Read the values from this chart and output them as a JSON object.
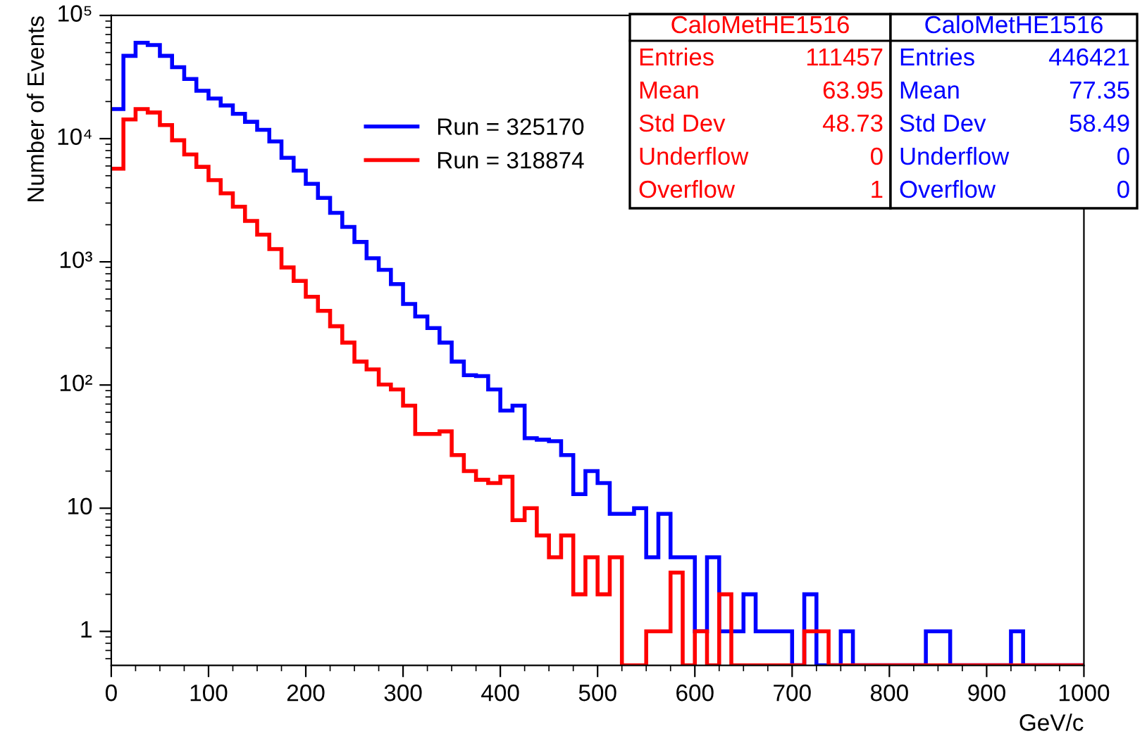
{
  "chart_data": {
    "type": "histogram",
    "xlabel": "GeV/c",
    "ylabel": "Number of Events",
    "bins": [
      0,
      12.5,
      25,
      37.5,
      50,
      62.5,
      75,
      87.5,
      100,
      112.5,
      125,
      137.5,
      150,
      162.5,
      175,
      187.5,
      200,
      212.5,
      225,
      237.5,
      250,
      262.5,
      275,
      287.5,
      300,
      312.5,
      325,
      337.5,
      350,
      362.5,
      375,
      387.5,
      400,
      412.5,
      425,
      437.5,
      450,
      462.5,
      475,
      487.5,
      500,
      512.5,
      525,
      537.5,
      550,
      562.5,
      575,
      587.5,
      600,
      612.5,
      625,
      637.5,
      650,
      662.5,
      675,
      687.5,
      700,
      712.5,
      725,
      737.5,
      750,
      762.5,
      775,
      787.5,
      800,
      812.5,
      825,
      837.5,
      850,
      862.5,
      875,
      887.5,
      900,
      912.5,
      925,
      937.5,
      950,
      962.5,
      975,
      987.5,
      1000
    ],
    "series": [
      {
        "name": "Run = 325170",
        "color": "#0000ff",
        "values": [
          17400,
          47000,
          60000,
          57600,
          47000,
          38000,
          30500,
          24500,
          21200,
          18600,
          15900,
          13700,
          11800,
          9500,
          7000,
          5500,
          4300,
          3300,
          2500,
          1920,
          1450,
          1070,
          860,
          660,
          455,
          360,
          290,
          221,
          155,
          120,
          118,
          92,
          62,
          68,
          37,
          36,
          35,
          27,
          13,
          20,
          16,
          9,
          9,
          10,
          4,
          9,
          4,
          4,
          1,
          4,
          1,
          1,
          2,
          1,
          1,
          1,
          null,
          2,
          null,
          null,
          1,
          null,
          null,
          null,
          null,
          null,
          null,
          1,
          1,
          null,
          null,
          null,
          null,
          null,
          1,
          null,
          null,
          null,
          null,
          null
        ]
      },
      {
        "name": "Run = 318874",
        "color": "#ff0000",
        "values": [
          5700,
          14300,
          17400,
          16300,
          12900,
          9700,
          7450,
          5900,
          4600,
          3600,
          2800,
          2150,
          1660,
          1270,
          900,
          700,
          520,
          400,
          300,
          221,
          155,
          134,
          101,
          92,
          68,
          40,
          40,
          42,
          27,
          20,
          17,
          16,
          18,
          8,
          10,
          6,
          4,
          6,
          2,
          4,
          2,
          4,
          null,
          null,
          1,
          1,
          3,
          null,
          1,
          null,
          2,
          null,
          null,
          null,
          null,
          null,
          null,
          1,
          1,
          null,
          null,
          null,
          null,
          null,
          null,
          null,
          null,
          null,
          null,
          null,
          null,
          null,
          null,
          null,
          null,
          null,
          null,
          null,
          null,
          null
        ]
      }
    ],
    "log": true,
    "xlim": [
      0,
      1000
    ],
    "xticks": [
      0,
      100,
      200,
      300,
      400,
      500,
      600,
      700,
      800,
      900,
      1000
    ],
    "ylim": [
      0.53,
      100000
    ],
    "yticks": [
      1,
      10,
      {
        "value": 100,
        "label": "10²"
      },
      {
        "value": 1000,
        "label": "10³"
      },
      {
        "value": 10000,
        "label": "10⁴"
      },
      {
        "value": 100000,
        "label": "10⁵"
      }
    ],
    "grid": false,
    "legend": "top",
    "annotations": [
      "CaloMetHE1516",
      "Entries",
      "Mean",
      "Std Dev",
      "Underflow",
      "Overflow",
      "111457",
      "63.95",
      "48.73",
      "0",
      "1",
      "CaloMetHE1516",
      "Entries",
      "Mean",
      "Std Dev",
      "Underflow",
      "Overflow",
      "446421",
      "77.35",
      "58.49",
      "0",
      "0"
    ]
  }
}
